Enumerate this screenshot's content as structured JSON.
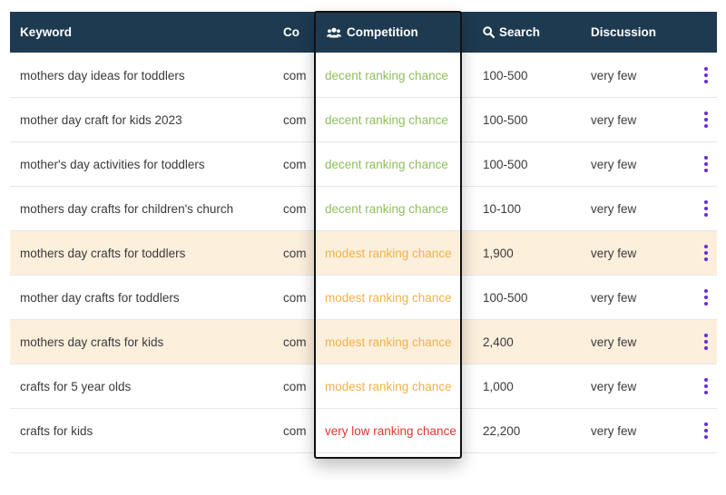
{
  "table": {
    "headers": {
      "keyword": "Keyword",
      "co": "Co",
      "competition": "Competition",
      "search": "Search",
      "discussion": "Discussion"
    },
    "rows": [
      {
        "keyword": "mothers day ideas for toddlers",
        "co": "com",
        "competition": "decent ranking chance",
        "level": "green",
        "search": "100-500",
        "discussion": "very few",
        "highlight": false
      },
      {
        "keyword": "mother day craft for kids 2023",
        "co": "com",
        "competition": "decent ranking chance",
        "level": "green",
        "search": "100-500",
        "discussion": "very few",
        "highlight": false
      },
      {
        "keyword": "mother's day activities for toddlers",
        "co": "com",
        "competition": "decent ranking chance",
        "level": "green",
        "search": "100-500",
        "discussion": "very few",
        "highlight": false
      },
      {
        "keyword": "mothers day crafts for children's church",
        "co": "com",
        "competition": "decent ranking chance",
        "level": "green",
        "search": "10-100",
        "discussion": "very few",
        "highlight": false
      },
      {
        "keyword": "mothers day crafts for toddlers",
        "co": "com",
        "competition": "modest ranking chance",
        "level": "orange",
        "search": "1,900",
        "discussion": "very few",
        "highlight": true
      },
      {
        "keyword": "mother day crafts for toddlers",
        "co": "com",
        "competition": "modest ranking chance",
        "level": "orange",
        "search": "100-500",
        "discussion": "very few",
        "highlight": false
      },
      {
        "keyword": "mothers day crafts for kids",
        "co": "com",
        "competition": "modest ranking chance",
        "level": "orange",
        "search": "2,400",
        "discussion": "very few",
        "highlight": true
      },
      {
        "keyword": "crafts for 5 year olds",
        "co": "com",
        "competition": "modest ranking chance",
        "level": "orange",
        "search": "1,000",
        "discussion": "very few",
        "highlight": false
      },
      {
        "keyword": "crafts for kids",
        "co": "com",
        "competition": "very low ranking chance",
        "level": "red",
        "search": "22,200",
        "discussion": "very few",
        "highlight": false
      }
    ]
  },
  "icons": {
    "competition": "users-icon",
    "search": "search-icon",
    "row_menu": "kebab-menu-icon"
  },
  "colors": {
    "header_bg": "#1e3a50",
    "highlight_row": "#fcefdc",
    "green": "#8fbf5a",
    "orange": "#f0b24a",
    "red": "#e0352f",
    "menu_dots": "#6a2bd6"
  }
}
